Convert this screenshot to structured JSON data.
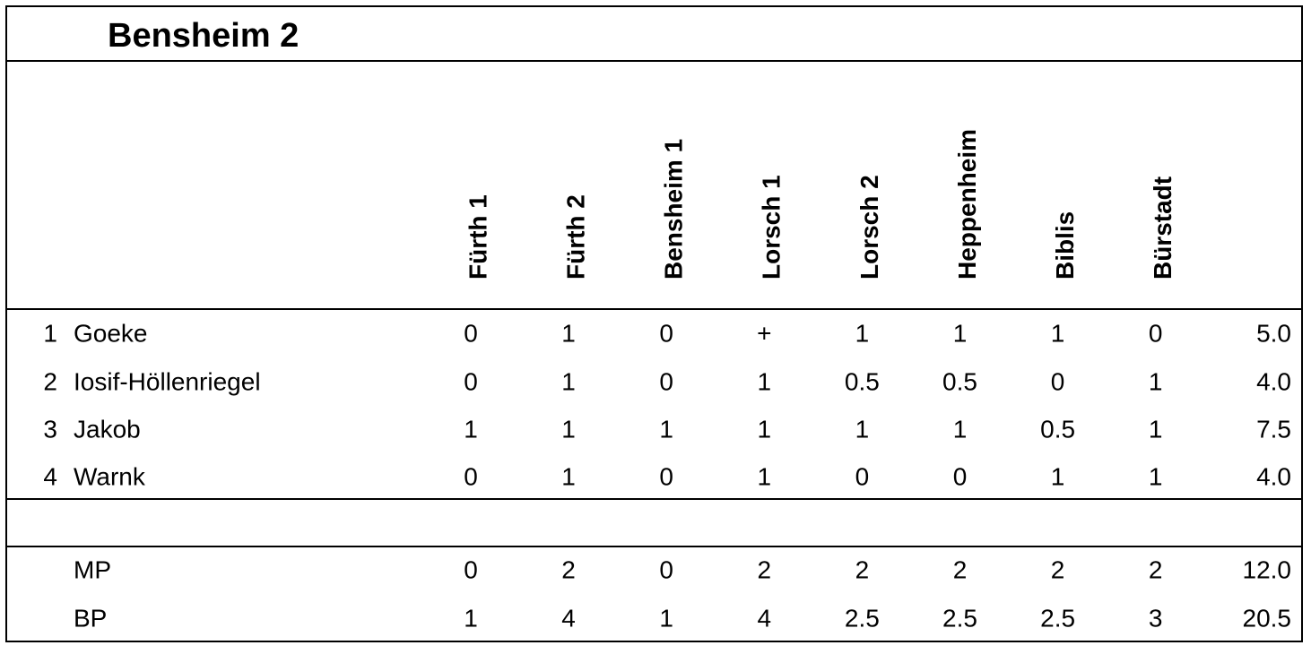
{
  "title": "Bensheim 2",
  "columns": [
    "Fürth 1",
    "Fürth 2",
    "Bensheim 1",
    "Lorsch 1",
    "Lorsch 2",
    "Heppenheim",
    "Biblis",
    "Bürstadt"
  ],
  "rows": [
    {
      "rank": "1",
      "name": "Goeke",
      "cells": [
        "0",
        "1",
        "0",
        "+",
        "1",
        "1",
        "1",
        "0"
      ],
      "total": "5.0"
    },
    {
      "rank": "2",
      "name": "Iosif-Höllenriegel",
      "cells": [
        "0",
        "1",
        "0",
        "1",
        "0.5",
        "0.5",
        "0",
        "1"
      ],
      "total": "4.0"
    },
    {
      "rank": "3",
      "name": "Jakob",
      "cells": [
        "1",
        "1",
        "1",
        "1",
        "1",
        "1",
        "0.5",
        "1"
      ],
      "total": "7.5"
    },
    {
      "rank": "4",
      "name": "Warnk",
      "cells": [
        "0",
        "1",
        "0",
        "1",
        "0",
        "0",
        "1",
        "1"
      ],
      "total": "4.0"
    }
  ],
  "summary": [
    {
      "label": "MP",
      "cells": [
        "0",
        "2",
        "0",
        "2",
        "2",
        "2",
        "2",
        "2"
      ],
      "total": "12.0"
    },
    {
      "label": "BP",
      "cells": [
        "1",
        "4",
        "1",
        "4",
        "2.5",
        "2.5",
        "2.5",
        "3"
      ],
      "total": "20.5"
    }
  ]
}
